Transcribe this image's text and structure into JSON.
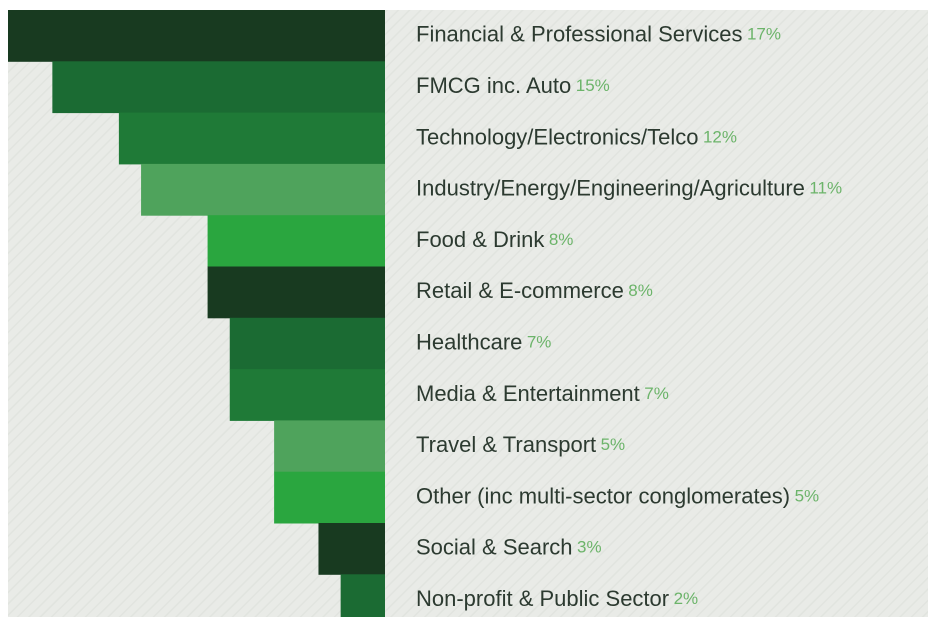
{
  "chart_data": {
    "type": "bar",
    "orientation": "horizontal",
    "categories": [
      "Financial & Professional Services",
      "FMCG inc. Auto",
      "Technology/Electronics/Telco",
      "Industry/Energy/Engineering/Agriculture",
      "Food & Drink",
      "Retail & E-commerce",
      "Healthcare",
      "Media & Entertainment",
      "Travel & Transport",
      "Other (inc multi-sector conglomerates)",
      "Social & Search",
      "Non-profit & Public Sector"
    ],
    "values": [
      17,
      15,
      12,
      11,
      8,
      8,
      7,
      7,
      5,
      5,
      3,
      2
    ],
    "value_labels": [
      "17%",
      "15%",
      "12%",
      "11%",
      "8%",
      "8%",
      "7%",
      "7%",
      "5%",
      "5%",
      "3%",
      "2%"
    ],
    "colors": [
      "#183a20",
      "#1b6b33",
      "#1f7a37",
      "#4fa35c",
      "#2aa63f",
      "#183a20",
      "#1b6b33",
      "#1f7a37",
      "#4fa35c",
      "#2aa63f",
      "#183a20",
      "#1b6b33"
    ]
  }
}
